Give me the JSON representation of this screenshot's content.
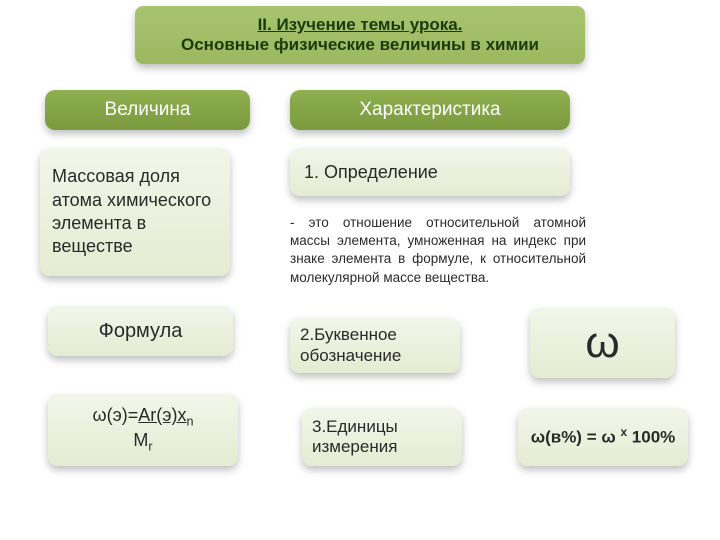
{
  "title": {
    "line1": "II. Изучение темы урока.",
    "line2": "Основные физические величины в химии"
  },
  "columns": {
    "left_header": "Величина",
    "right_header": "Характеристика"
  },
  "mass_fraction": "Массовая доля атома химического элемента в веществе",
  "formula_label": "Формула",
  "formula": {
    "lhs": "ω(э)=",
    "num_a": "Ar(э)х",
    "num_sub": "n",
    "den_a": "M",
    "den_sub": "r"
  },
  "definition": {
    "label": "1. Определение",
    "text": "- это отношение относительной атомной массы элемента, умноженная на индекс при знаке элемента в формуле, к относительной молекулярной массе вещества."
  },
  "letter": {
    "label": "2.Буквенное обозначение",
    "symbol": "ω"
  },
  "units": {
    "label": "3.Единицы измерения",
    "expr_a": "ω(в%) = ω ",
    "expr_sup": "х",
    "expr_b": " 100%"
  },
  "colors": {
    "green_dark": "#7a9a3e",
    "green_light": "#a8c470",
    "box_light_top": "#f2f6ea",
    "box_light_bottom": "#e4ecd2",
    "text_dark": "#1a3a0a"
  }
}
